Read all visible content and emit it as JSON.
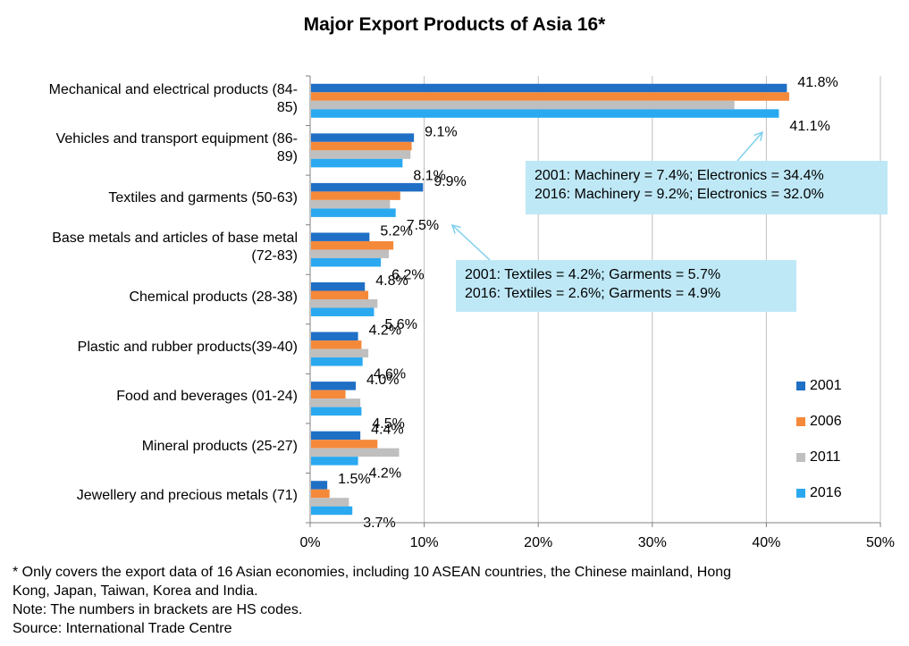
{
  "chart_data": {
    "type": "bar",
    "orientation": "horizontal",
    "title": "Major Export Products of Asia 16*",
    "categories": [
      "Mechanical and electrical products (84-85)",
      "Vehicles and transport equipment (86-89)",
      "Textiles and garments (50-63)",
      "Base metals and articles of base metal (72-83)",
      "Chemical products (28-38)",
      "Plastic and rubber products(39-40)",
      "Food and beverages (01-24)",
      "Mineral products (25-27)",
      "Jewellery and precious metals (71)"
    ],
    "category_display": [
      [
        "Mechanical and electrical products (84-",
        "85)"
      ],
      [
        "Vehicles and transport equipment (86-",
        "89)"
      ],
      [
        "Textiles and garments (50-63)"
      ],
      [
        "Base metals and articles of base metal",
        "(72-83)"
      ],
      [
        "Chemical products (28-38)"
      ],
      [
        "Plastic and rubber products(39-40)"
      ],
      [
        "Food and beverages (01-24)"
      ],
      [
        "Mineral products (25-27)"
      ],
      [
        "Jewellery and precious metals (71)"
      ]
    ],
    "series": [
      {
        "name": "2001",
        "color": "#1f6fc5",
        "values": [
          41.8,
          9.1,
          9.9,
          5.2,
          4.8,
          4.2,
          4.0,
          4.4,
          1.5
        ]
      },
      {
        "name": "2006",
        "color": "#f5893a",
        "values": [
          42.0,
          8.9,
          7.9,
          7.3,
          5.1,
          4.5,
          3.1,
          5.9,
          1.7
        ]
      },
      {
        "name": "2011",
        "color": "#bfbfbf",
        "values": [
          37.2,
          8.8,
          7.0,
          6.9,
          5.9,
          5.1,
          4.4,
          7.8,
          3.4
        ]
      },
      {
        "name": "2016",
        "color": "#2aa9f0",
        "values": [
          41.1,
          8.1,
          7.5,
          6.2,
          5.6,
          4.6,
          4.5,
          4.2,
          3.7
        ]
      }
    ],
    "data_labels": [
      {
        "category": 0,
        "series": 0,
        "text": "41.8%"
      },
      {
        "category": 0,
        "series": 3,
        "text": "41.1%"
      },
      {
        "category": 1,
        "series": 0,
        "text": "9.1%"
      },
      {
        "category": 1,
        "series": 3,
        "text": "8.1%"
      },
      {
        "category": 2,
        "series": 0,
        "text": "9.9%"
      },
      {
        "category": 2,
        "series": 3,
        "text": "7.5%"
      },
      {
        "category": 3,
        "series": 0,
        "text": "5.2%"
      },
      {
        "category": 3,
        "series": 3,
        "text": "6.2%"
      },
      {
        "category": 4,
        "series": 0,
        "text": "4.8%"
      },
      {
        "category": 4,
        "series": 3,
        "text": "5.6%"
      },
      {
        "category": 5,
        "series": 0,
        "text": "4.2%"
      },
      {
        "category": 5,
        "series": 3,
        "text": "4.6%"
      },
      {
        "category": 6,
        "series": 0,
        "text": "4.0%"
      },
      {
        "category": 6,
        "series": 3,
        "text": "4.5%"
      },
      {
        "category": 7,
        "series": 0,
        "text": "4.4%"
      },
      {
        "category": 7,
        "series": 3,
        "text": "4.2%"
      },
      {
        "category": 8,
        "series": 0,
        "text": "1.5%"
      },
      {
        "category": 8,
        "series": 3,
        "text": "3.7%"
      }
    ],
    "x_ticks": [
      0,
      10,
      20,
      30,
      40,
      50
    ],
    "x_tick_labels": [
      "0%",
      "10%",
      "20%",
      "30%",
      "40%",
      "50%"
    ],
    "xlim": [
      0,
      50
    ],
    "xlabel": "",
    "ylabel": "",
    "grid": "vertical",
    "legend_position": "right",
    "annotations": [
      {
        "lines": [
          "2001: Machinery = 7.4%; Electronics = 34.4%",
          "2016: Machinery = 9.2%; Electronics = 32.0%"
        ],
        "points_to": "Mechanical and electrical products (84-85)"
      },
      {
        "lines": [
          "2001: Textiles = 4.2%; Garments = 5.7%",
          "2016: Textiles = 2.6%; Garments = 4.9%"
        ],
        "points_to": "Textiles and garments (50-63)"
      }
    ]
  },
  "footnotes": [
    "* Only covers the export data of 16 Asian economies, including 10 ASEAN countries, the Chinese mainland, Hong",
    "Kong, Japan, Taiwan, Korea and India.",
    "Note: The numbers in brackets are HS codes.",
    "Source: International Trade Centre"
  ]
}
